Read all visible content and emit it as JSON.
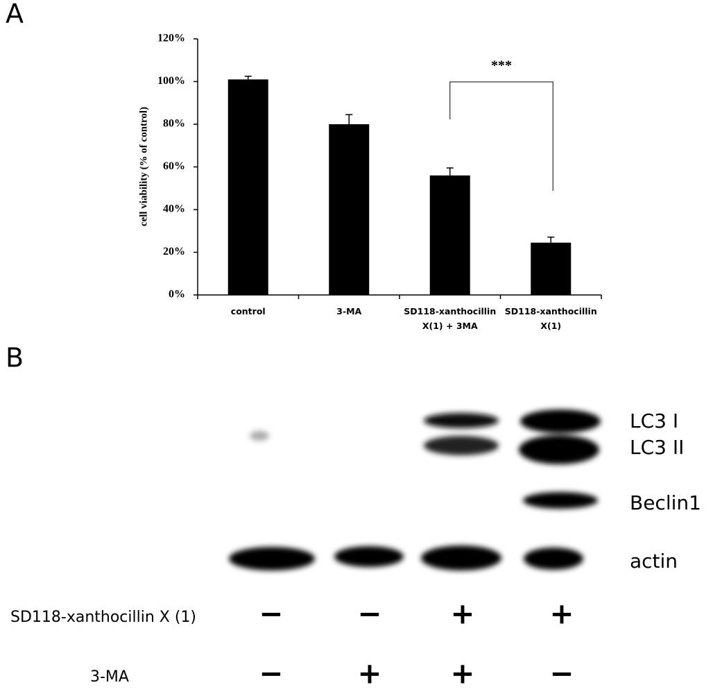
{
  "panels": [
    "A",
    "B"
  ],
  "chart_data": {
    "type": "bar",
    "ylabel": "cell viability (% of control)",
    "categories": [
      "control",
      "3-MA",
      "SD118-xanthocillin X(1) + 3MA",
      "SD118-xanthocillin X(1)"
    ],
    "values": [
      101,
      80,
      56,
      24.5
    ],
    "errors": [
      1.5,
      4.5,
      3.5,
      2.6
    ],
    "color": "#000000",
    "annotation": "***",
    "ylim": [
      0,
      120
    ],
    "yticks": [
      {
        "value": 0,
        "label": "0%"
      },
      {
        "value": 20,
        "label": "20%"
      },
      {
        "value": 40,
        "label": "40%"
      },
      {
        "value": 60,
        "label": "60%"
      },
      {
        "value": 80,
        "label": "80%"
      },
      {
        "value": 100,
        "label": "100%"
      },
      {
        "value": 120,
        "label": "120%"
      }
    ],
    "grid": false
  },
  "blot": {
    "bands": [
      "LC3 I",
      "LC3 II",
      "Beclin1",
      "actin"
    ],
    "treatments": [
      {
        "name": "SD118-xanthocillin X (1)",
        "signs": [
          "−",
          "−",
          "+",
          "+"
        ]
      },
      {
        "name": "3-MA",
        "signs": [
          "−",
          "+",
          "+",
          "−"
        ]
      }
    ]
  }
}
